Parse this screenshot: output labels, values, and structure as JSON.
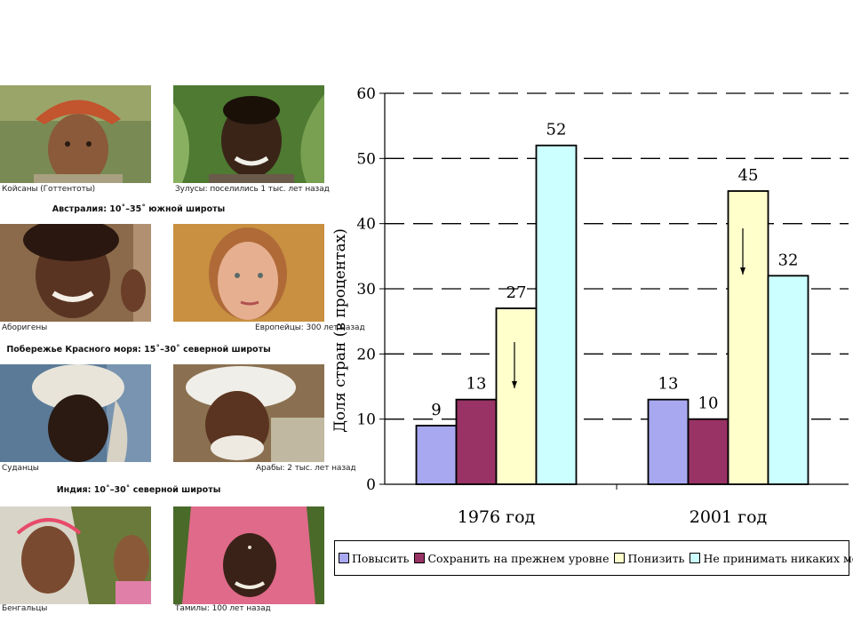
{
  "photos": {
    "items": [
      {
        "caption": "Койсаны (Готтентоты)"
      },
      {
        "caption": "Зулусы: поселились 1 тыс. лет назад"
      },
      {
        "caption": "Аборигены"
      },
      {
        "caption": "Европейцы: 300 лет назад"
      },
      {
        "caption": "Суданцы"
      },
      {
        "caption": "Арабы: 2 тыс. лет назад"
      },
      {
        "caption": "Бенгальцы"
      },
      {
        "caption": "Тамилы: 100 лет назад"
      }
    ],
    "regions": [
      "Австралия: 10˚–35˚ южной широты",
      "Побережье Красного моря: 15˚–30˚ северной широты",
      "Индия: 10˚–30˚ северной широты"
    ]
  },
  "chart_data": {
    "type": "bar",
    "categories": [
      "1976 год",
      "2001 год"
    ],
    "series": [
      {
        "name": "Повысить",
        "values": [
          9,
          13
        ],
        "color": "#a8a8f0"
      },
      {
        "name": "Сохранить на прежнем уровне",
        "values": [
          13,
          10
        ],
        "color": "#993366"
      },
      {
        "name": "Понизить",
        "values": [
          27,
          45
        ],
        "color": "#ffffcc"
      },
      {
        "name": "Не принимать никаких мер",
        "values": [
          52,
          32
        ],
        "color": "#ccffff"
      }
    ],
    "data_labels": [
      [
        "9",
        "13"
      ],
      [
        "13",
        "10"
      ],
      [
        "27",
        "45"
      ],
      [
        "52",
        "32"
      ]
    ],
    "ylabel": "Доля стран (в процентах)",
    "ylim": [
      0,
      60
    ],
    "yticks": [
      "0",
      "10",
      "20",
      "30",
      "40",
      "50",
      "60"
    ],
    "grid": "dashed horizontal",
    "legend_position": "bottom",
    "annotations": "down arrows on Понизить bars"
  }
}
